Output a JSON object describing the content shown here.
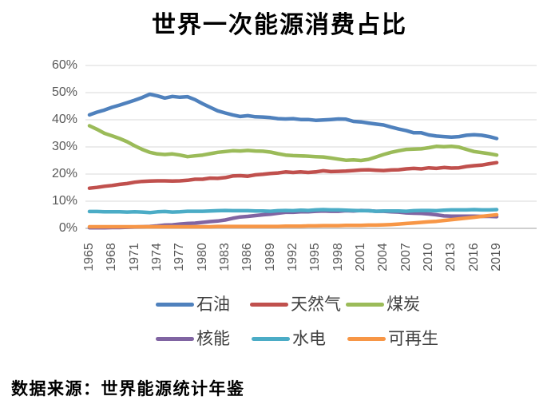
{
  "page": {
    "title": "世界一次能源消费占比",
    "source_note": "数据来源：世界能源统计年鉴"
  },
  "chart_data": {
    "type": "line",
    "title": "世界一次能源消费占比",
    "xlabel": "",
    "ylabel": "",
    "ylim": [
      0,
      60
    ],
    "grid": "horizontal-only",
    "legend_position": "bottom-two-rows",
    "gridline_color": "#D9D9D9",
    "axis_line_color": "#BFBFBF",
    "axis_text_color": "#595959",
    "y_ticks": [
      "0%",
      "10%",
      "20%",
      "30%",
      "40%",
      "50%",
      "60%"
    ],
    "x_tick_labels": [
      "1965",
      "1968",
      "1971",
      "1974",
      "1977",
      "1980",
      "1983",
      "1986",
      "1989",
      "1992",
      "1995",
      "1998",
      "2001",
      "2004",
      "2007",
      "2010",
      "2013",
      "2016",
      "2019"
    ],
    "years": [
      1965,
      1966,
      1967,
      1968,
      1969,
      1970,
      1971,
      1972,
      1973,
      1974,
      1975,
      1976,
      1977,
      1978,
      1979,
      1980,
      1981,
      1982,
      1983,
      1984,
      1985,
      1986,
      1987,
      1988,
      1989,
      1990,
      1991,
      1992,
      1993,
      1994,
      1995,
      1996,
      1997,
      1998,
      1999,
      2000,
      2001,
      2002,
      2003,
      2004,
      2005,
      2006,
      2007,
      2008,
      2009,
      2010,
      2011,
      2012,
      2013,
      2014,
      2015,
      2016,
      2017,
      2018,
      2019
    ],
    "legend_rows": [
      [
        0,
        1,
        2
      ],
      [
        3,
        4,
        5
      ]
    ],
    "series": [
      {
        "id": "oil",
        "name": "石油",
        "color": "#4F81BD",
        "unit": "%",
        "values": [
          41.8,
          42.8,
          43.6,
          44.6,
          45.4,
          46.3,
          47.2,
          48.2,
          49.4,
          48.8,
          48.0,
          48.6,
          48.3,
          48.5,
          47.4,
          45.9,
          44.6,
          43.3,
          42.5,
          41.8,
          41.2,
          41.5,
          41.1,
          41.0,
          40.8,
          40.4,
          40.3,
          40.4,
          40.1,
          40.1,
          39.8,
          39.9,
          40.1,
          40.3,
          40.2,
          39.4,
          39.2,
          38.8,
          38.4,
          38.1,
          37.3,
          36.6,
          36.0,
          35.2,
          35.2,
          34.4,
          34.0,
          33.8,
          33.6,
          33.8,
          34.3,
          34.5,
          34.3,
          33.8,
          33.1
        ]
      },
      {
        "id": "natural-gas",
        "name": "天然气",
        "color": "#C0504D",
        "unit": "%",
        "values": [
          14.8,
          15.1,
          15.5,
          15.8,
          16.2,
          16.5,
          17.0,
          17.3,
          17.4,
          17.5,
          17.5,
          17.4,
          17.5,
          17.7,
          18.1,
          18.1,
          18.5,
          18.4,
          18.7,
          19.3,
          19.4,
          19.2,
          19.7,
          19.9,
          20.2,
          20.4,
          20.8,
          20.6,
          20.8,
          20.6,
          20.8,
          21.2,
          20.9,
          21.0,
          21.1,
          21.3,
          21.5,
          21.6,
          21.4,
          21.3,
          21.5,
          21.6,
          21.9,
          22.1,
          21.9,
          22.3,
          22.1,
          22.4,
          22.2,
          22.3,
          22.8,
          23.1,
          23.3,
          23.8,
          24.2
        ]
      },
      {
        "id": "coal",
        "name": "煤炭",
        "color": "#9BBB59",
        "unit": "%",
        "values": [
          37.8,
          36.5,
          35.0,
          34.1,
          33.1,
          31.9,
          30.4,
          29.1,
          28.0,
          27.4,
          27.2,
          27.4,
          27.0,
          26.4,
          26.7,
          27.0,
          27.5,
          28.0,
          28.3,
          28.6,
          28.5,
          28.7,
          28.5,
          28.4,
          28.1,
          27.5,
          27.0,
          26.8,
          26.7,
          26.6,
          26.4,
          26.3,
          25.9,
          25.5,
          25.1,
          25.2,
          25.0,
          25.4,
          26.3,
          27.2,
          28.0,
          28.6,
          29.1,
          29.2,
          29.3,
          29.7,
          30.2,
          30.1,
          30.2,
          29.9,
          29.1,
          28.3,
          27.9,
          27.5,
          27.0
        ]
      },
      {
        "id": "nuclear",
        "name": "核能",
        "color": "#8064A2",
        "unit": "%",
        "values": [
          0.2,
          0.2,
          0.2,
          0.3,
          0.3,
          0.4,
          0.5,
          0.6,
          0.7,
          0.9,
          1.2,
          1.3,
          1.6,
          1.8,
          1.9,
          2.2,
          2.5,
          2.7,
          3.1,
          3.7,
          4.2,
          4.4,
          4.7,
          5.0,
          5.2,
          5.6,
          5.9,
          5.9,
          6.1,
          6.1,
          6.3,
          6.4,
          6.3,
          6.3,
          6.5,
          6.4,
          6.6,
          6.5,
          6.3,
          6.3,
          6.1,
          6.0,
          5.7,
          5.6,
          5.5,
          5.3,
          5.0,
          4.6,
          4.5,
          4.5,
          4.5,
          4.5,
          4.4,
          4.4,
          4.3
        ]
      },
      {
        "id": "hydro",
        "name": "水电",
        "color": "#4BACC6",
        "unit": "%",
        "values": [
          6.2,
          6.2,
          6.1,
          6.1,
          6.1,
          6.0,
          6.1,
          6.0,
          5.8,
          6.1,
          6.2,
          6.0,
          6.1,
          6.3,
          6.3,
          6.3,
          6.4,
          6.5,
          6.6,
          6.5,
          6.5,
          6.5,
          6.4,
          6.4,
          6.3,
          6.5,
          6.6,
          6.5,
          6.7,
          6.6,
          6.8,
          6.9,
          6.8,
          6.8,
          6.7,
          6.6,
          6.5,
          6.5,
          6.3,
          6.4,
          6.4,
          6.4,
          6.3,
          6.5,
          6.6,
          6.6,
          6.5,
          6.7,
          6.8,
          6.8,
          6.8,
          6.9,
          6.8,
          6.8,
          6.9
        ]
      },
      {
        "id": "renewable",
        "name": "可再生",
        "color": "#F79646",
        "unit": "%",
        "values": [
          0.6,
          0.6,
          0.6,
          0.6,
          0.6,
          0.6,
          0.6,
          0.6,
          0.6,
          0.6,
          0.6,
          0.6,
          0.6,
          0.6,
          0.6,
          0.6,
          0.6,
          0.7,
          0.7,
          0.7,
          0.7,
          0.7,
          0.7,
          0.7,
          0.7,
          0.7,
          0.8,
          0.8,
          0.8,
          0.9,
          0.9,
          1.0,
          1.0,
          1.0,
          1.1,
          1.1,
          1.1,
          1.2,
          1.2,
          1.3,
          1.4,
          1.6,
          1.8,
          2.0,
          2.2,
          2.4,
          2.6,
          2.9,
          3.2,
          3.5,
          3.8,
          4.1,
          4.4,
          4.7,
          5.0
        ]
      }
    ]
  }
}
